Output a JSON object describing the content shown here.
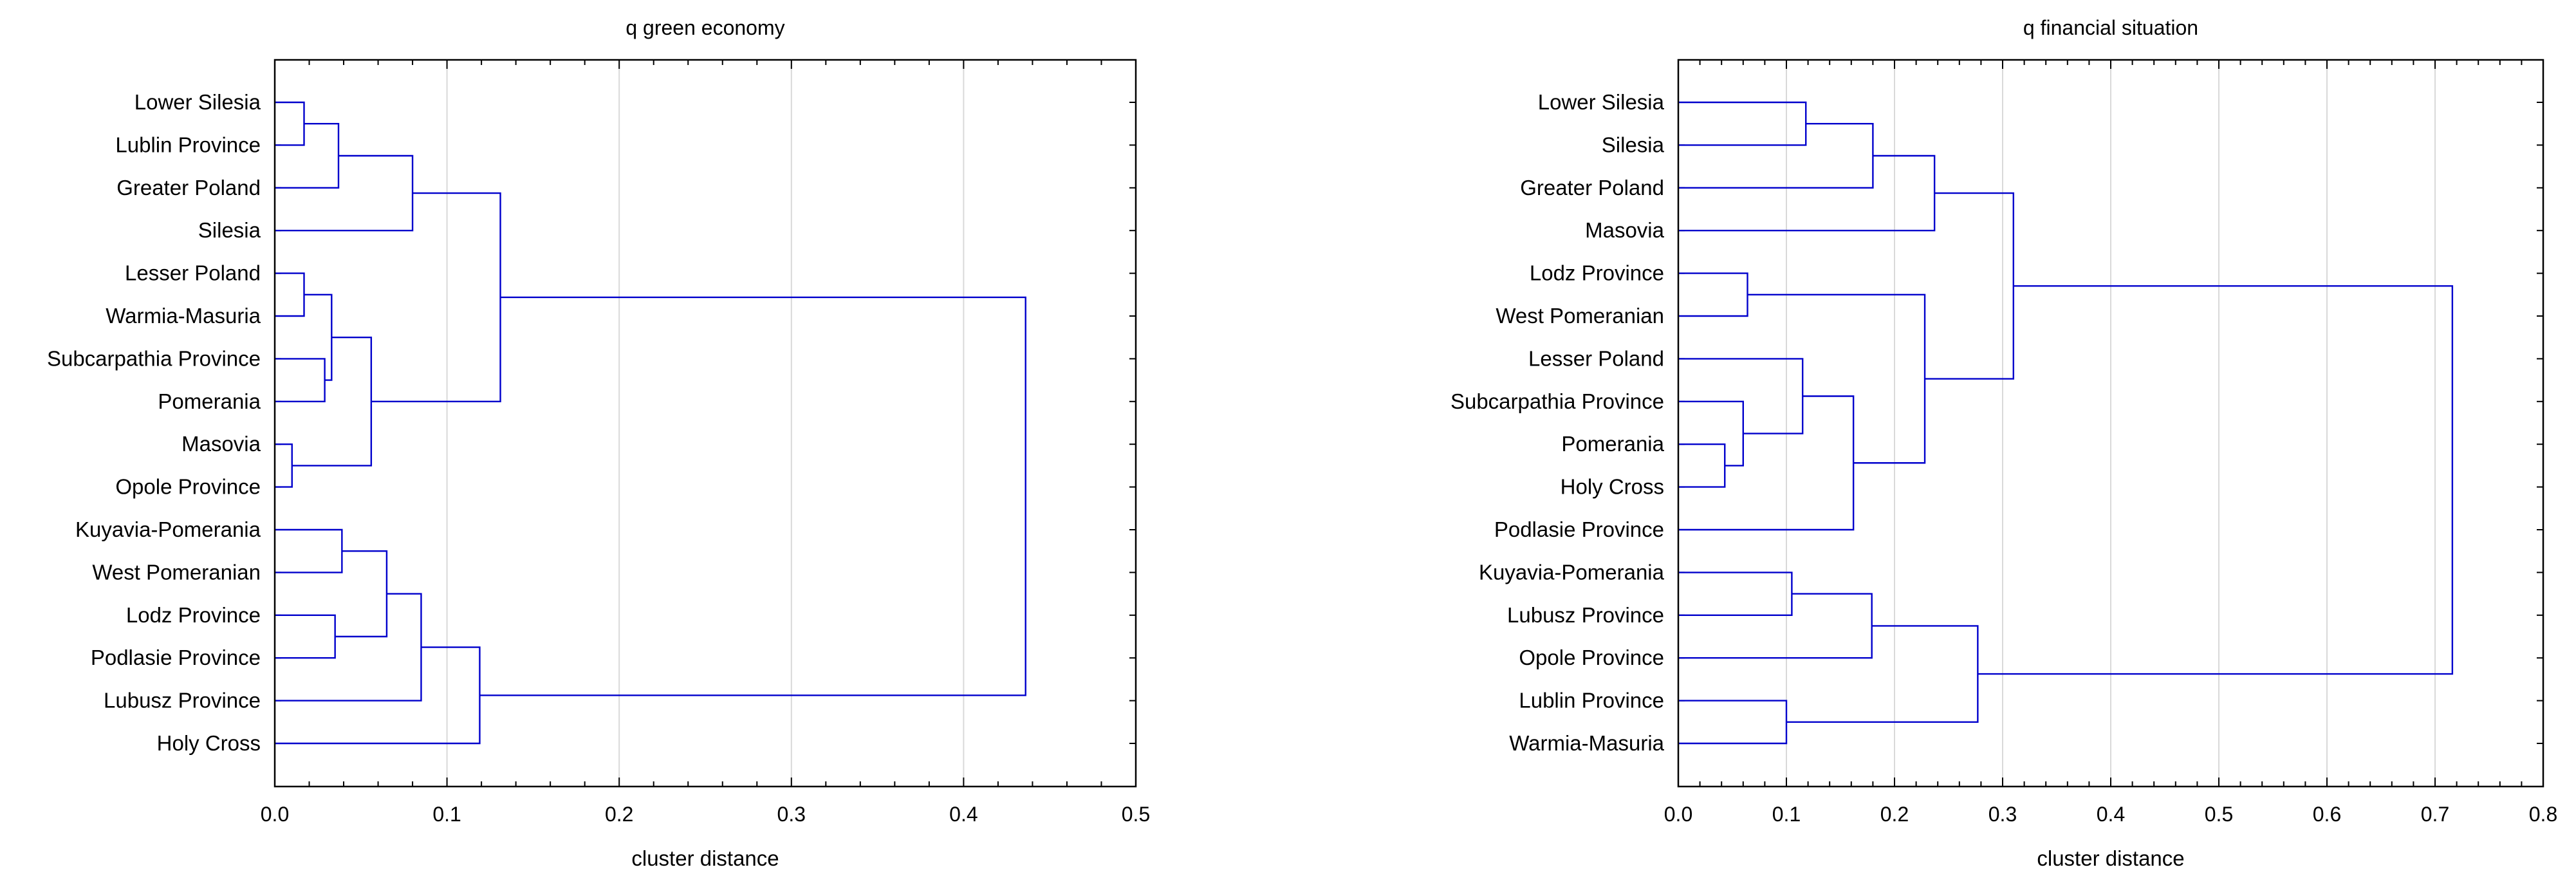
{
  "chart_data": [
    {
      "type": "dendrogram",
      "title": "q green economy",
      "xlabel": "cluster distance",
      "xlim": [
        0,
        0.5
      ],
      "xticks": [
        "0.0",
        "0.1",
        "0.2",
        "0.3",
        "0.4",
        "0.5"
      ],
      "grid": true,
      "link_color": "#0000cc",
      "leaves": [
        "Lower Silesia",
        "Lublin Province",
        "Greater Poland",
        "Silesia",
        "Lesser Poland",
        "Warmia-Masuria",
        "Subcarpathia Province",
        "Pomerania",
        "Masovia",
        "Opole Province",
        "Kuyavia-Pomerania",
        "West Pomeranian",
        "Lodz Province",
        "Podlasie Province",
        "Lubusz Province",
        "Holy Cross"
      ],
      "merges": [
        {
          "left": "leaf:0",
          "right": "leaf:1",
          "distance": 0.017
        },
        {
          "left": "node:0",
          "right": "leaf:2",
          "distance": 0.037
        },
        {
          "left": "node:1",
          "right": "leaf:3",
          "distance": 0.08
        },
        {
          "left": "leaf:4",
          "right": "leaf:5",
          "distance": 0.017
        },
        {
          "left": "leaf:6",
          "right": "leaf:7",
          "distance": 0.029
        },
        {
          "left": "node:3",
          "right": "node:4",
          "distance": 0.033
        },
        {
          "left": "leaf:8",
          "right": "leaf:9",
          "distance": 0.01
        },
        {
          "left": "node:5",
          "right": "node:6",
          "distance": 0.056
        },
        {
          "left": "node:2",
          "right": "node:7",
          "distance": 0.131
        },
        {
          "left": "leaf:10",
          "right": "leaf:11",
          "distance": 0.039
        },
        {
          "left": "leaf:12",
          "right": "leaf:13",
          "distance": 0.035
        },
        {
          "left": "node:9",
          "right": "node:10",
          "distance": 0.065
        },
        {
          "left": "node:11",
          "right": "leaf:14",
          "distance": 0.085
        },
        {
          "left": "node:12",
          "right": "leaf:15",
          "distance": 0.119
        },
        {
          "left": "node:8",
          "right": "node:13",
          "distance": 0.436
        }
      ]
    },
    {
      "type": "dendrogram",
      "title": "q financial situation",
      "xlabel": "cluster distance",
      "xlim": [
        0,
        0.8
      ],
      "xticks": [
        "0.0",
        "0.1",
        "0.2",
        "0.3",
        "0.4",
        "0.5",
        "0.6",
        "0.7",
        "0.8"
      ],
      "grid": true,
      "link_color": "#0000cc",
      "leaves": [
        "Lower Silesia",
        "Silesia",
        "Greater Poland",
        "Masovia",
        "Lodz Province",
        "West Pomeranian",
        "Lesser Poland",
        "Subcarpathia Province",
        "Pomerania",
        "Holy Cross",
        "Podlasie Province",
        "Kuyavia-Pomerania",
        "Lubusz Province",
        "Opole Province",
        "Lublin Province",
        "Warmia-Masuria"
      ],
      "merges": [
        {
          "left": "leaf:0",
          "right": "leaf:1",
          "distance": 0.118
        },
        {
          "left": "node:0",
          "right": "leaf:2",
          "distance": 0.18
        },
        {
          "left": "node:1",
          "right": "leaf:3",
          "distance": 0.237
        },
        {
          "left": "leaf:4",
          "right": "leaf:5",
          "distance": 0.064
        },
        {
          "left": "leaf:8",
          "right": "leaf:9",
          "distance": 0.043
        },
        {
          "left": "leaf:7",
          "right": "node:4",
          "distance": 0.06
        },
        {
          "left": "leaf:6",
          "right": "node:5",
          "distance": 0.115
        },
        {
          "left": "node:6",
          "right": "leaf:10",
          "distance": 0.162
        },
        {
          "left": "node:3",
          "right": "node:7",
          "distance": 0.228
        },
        {
          "left": "node:2",
          "right": "node:8",
          "distance": 0.31
        },
        {
          "left": "leaf:11",
          "right": "leaf:12",
          "distance": 0.105
        },
        {
          "left": "node:10",
          "right": "leaf:13",
          "distance": 0.179
        },
        {
          "left": "leaf:14",
          "right": "leaf:15",
          "distance": 0.1
        },
        {
          "left": "node:11",
          "right": "node:12",
          "distance": 0.277
        },
        {
          "left": "node:9",
          "right": "node:13",
          "distance": 0.716
        }
      ]
    }
  ]
}
